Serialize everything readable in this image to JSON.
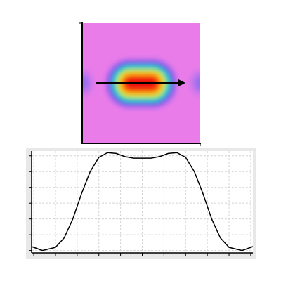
{
  "chart_data": {
    "type": "line",
    "x": [
      -0.1,
      0.4,
      1,
      1.4,
      1.8,
      2.2,
      2.6,
      3,
      3.4,
      3.8,
      4.2,
      4.6,
      5,
      5.4,
      5.8,
      6.2,
      6.6,
      7,
      7.4,
      7.8,
      8.2,
      8.6,
      9,
      9.6,
      10.1
    ],
    "series": [
      {
        "color": "#000000",
        "values": [
          0.25,
          0,
          0.2,
          0.8,
          2.0,
          3.6,
          5.0,
          5.9,
          6.2,
          6.15,
          5.95,
          5.85,
          5.85,
          5.85,
          5.95,
          6.15,
          6.2,
          5.9,
          5.0,
          3.6,
          2.0,
          0.8,
          0.2,
          0,
          0.25
        ]
      }
    ],
    "xlim": [
      -0.1,
      10.1
    ],
    "xticks": [
      0,
      1,
      2,
      3,
      4,
      5,
      6,
      7,
      8,
      9,
      10
    ],
    "ylim": [
      -0.15,
      6.3
    ],
    "yticks": [
      0,
      1,
      2,
      3,
      4,
      5,
      6
    ],
    "grid": true
  }
}
